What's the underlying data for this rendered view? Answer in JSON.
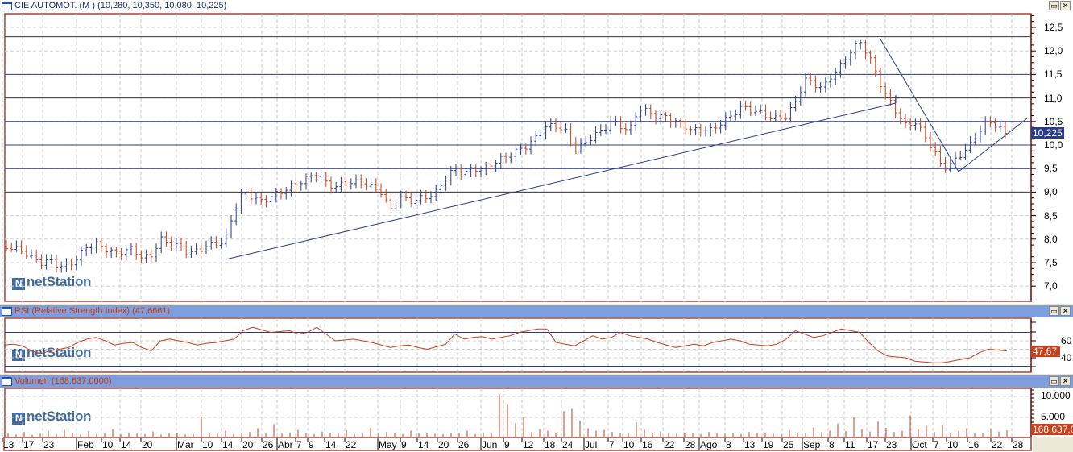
{
  "main": {
    "title": "CIE AUTOMOT. (M ) (10,280, 10,350, 10,080, 10,225)",
    "last_price": "10,225",
    "y_ticks": [
      "12,5",
      "12,0",
      "11,5",
      "11,0",
      "10,5",
      "10,0",
      "9,5",
      "9,0",
      "8,5",
      "8,0",
      "7,5",
      "7,0"
    ],
    "watermark": "netStation",
    "minimize": "▭",
    "close": "✕"
  },
  "rsi": {
    "title": "RSI (Relative Strength Index) (47,6661)",
    "last": "47,67",
    "y_ticks": [
      "60",
      "40"
    ],
    "watermark": "netStation",
    "minimize": "▭",
    "close": "✕"
  },
  "volume": {
    "title": "Volumen (168.637,0000)",
    "last": "168.637,0",
    "y_ticks": [
      "10.000",
      "5.000"
    ],
    "watermark": "netStation",
    "minimize": "▭",
    "close": "✕"
  },
  "x_axis": {
    "labels": [
      "13",
      "17",
      "23",
      "Feb",
      "10",
      "14",
      "20",
      "Mar",
      "10",
      "14",
      "20",
      "26",
      "Abr",
      "7",
      "9",
      "14",
      "22",
      "May",
      "9",
      "14",
      "20",
      "26",
      "Jun",
      "9",
      "12",
      "18",
      "24",
      "Jul",
      "7",
      "10",
      "16",
      "22",
      "28",
      "Ago",
      "8",
      "13",
      "19",
      "25",
      "Sep",
      "8",
      "11",
      "17",
      "23",
      "Oct",
      "7",
      "10",
      "16",
      "22",
      "28"
    ]
  },
  "colors": {
    "up": "#2a3a8c",
    "down": "#c8401a",
    "rsi": "#c8401a",
    "volume": "#c8401a",
    "hline": "#2a3a8c",
    "axis": "#a0433a"
  },
  "chart_data": {
    "type": "ohlc",
    "price_range": [
      6.8,
      12.7
    ],
    "horizontal_levels": [
      12.3,
      11.5,
      11.0,
      10.5,
      10.0,
      9.5,
      9.0
    ],
    "close_path": [
      7.85,
      7.8,
      7.75,
      7.6,
      7.5,
      7.55,
      7.4,
      7.45,
      7.6,
      7.85,
      7.9,
      7.8,
      7.7,
      7.75,
      7.8,
      7.6,
      7.65,
      8.0,
      7.9,
      7.85,
      7.7,
      7.75,
      7.85,
      7.9,
      7.95,
      8.6,
      9.0,
      8.9,
      8.8,
      8.9,
      9.0,
      9.1,
      9.2,
      9.3,
      9.4,
      9.2,
      9.1,
      9.2,
      9.2,
      9.2,
      9.1,
      9.0,
      8.6,
      8.9,
      8.8,
      8.85,
      8.9,
      9.0,
      9.3,
      9.5,
      9.4,
      9.5,
      9.5,
      9.6,
      9.7,
      9.8,
      9.9,
      10.0,
      10.2,
      10.4,
      10.4,
      10.3,
      9.9,
      10.0,
      10.2,
      10.3,
      10.5,
      10.4,
      10.3,
      10.8,
      10.7,
      10.6,
      10.6,
      10.5,
      10.4,
      10.3,
      10.35,
      10.3,
      10.5,
      10.6,
      10.8,
      10.75,
      10.7,
      10.6,
      10.55,
      10.6,
      10.9,
      11.4,
      11.3,
      11.2,
      11.5,
      11.7,
      12.0,
      12.2,
      11.9,
      11.4,
      11.0,
      10.7,
      10.4,
      10.5,
      10.2,
      9.9,
      9.5,
      9.6,
      9.8,
      10.0,
      10.3,
      10.5,
      10.4,
      10.2
    ],
    "rsi_path": [
      55,
      56,
      54,
      48,
      45,
      48,
      50,
      52,
      58,
      62,
      64,
      60,
      55,
      57,
      58,
      52,
      48,
      60,
      62,
      60,
      58,
      55,
      57,
      58,
      60,
      62,
      72,
      76,
      73,
      70,
      71,
      72,
      68,
      70,
      76,
      68,
      60,
      61,
      62,
      60,
      58,
      55,
      52,
      54,
      55,
      52,
      50,
      53,
      56,
      68,
      62,
      64,
      65,
      62,
      64,
      66,
      70,
      72,
      74,
      74,
      58,
      56,
      54,
      60,
      66,
      62,
      64,
      70,
      66,
      64,
      62,
      58,
      55,
      52,
      54,
      56,
      54,
      58,
      60,
      62,
      60,
      56,
      55,
      54,
      56,
      62,
      72,
      68,
      64,
      66,
      70,
      74,
      72,
      70,
      58,
      48,
      42,
      41,
      40,
      36,
      35,
      34,
      34,
      36,
      38,
      40,
      46,
      50,
      49,
      48
    ],
    "rsi_levels": [
      70,
      30
    ],
    "rsi_range": [
      25,
      85
    ],
    "volume_bars": [
      1200,
      900,
      1500,
      800,
      1100,
      1800,
      1000,
      2000,
      1300,
      900,
      1700,
      1000,
      1200,
      2200,
      900,
      1400,
      1100,
      1000,
      1600,
      900,
      1200,
      1300,
      900,
      1000,
      5200,
      1400,
      1100,
      1800,
      1000,
      1300,
      1500,
      2400,
      1200,
      3400,
      1100,
      1400,
      2000,
      1200,
      1000,
      1600,
      1300,
      1100,
      1900,
      1000,
      1200,
      2500,
      1100,
      1500,
      1300,
      1000,
      1800,
      1200,
      1400,
      1100,
      1000,
      1300,
      1200,
      1800,
      1000,
      1400,
      1200,
      10500,
      8000,
      3600,
      5000,
      1500,
      2200,
      1800,
      1400,
      6500,
      7000,
      4200,
      2400,
      1800,
      2000,
      1500,
      1300,
      1200,
      3800,
      2100,
      1400,
      1600,
      1200,
      1100,
      1400,
      1300,
      1000,
      1500,
      1200,
      1100,
      1300,
      1000,
      1500,
      1200,
      1400,
      1100,
      1000,
      2000,
      1400,
      1300,
      2600,
      1500,
      1800,
      3500,
      1700,
      5000,
      2200,
      1600,
      4000,
      2500,
      1500,
      1800,
      5500,
      2100,
      3000,
      1500,
      3300,
      1400,
      1800,
      2400,
      1200,
      1300,
      2300,
      1600,
      1900
    ],
    "volume_range": [
      0,
      12000
    ]
  }
}
